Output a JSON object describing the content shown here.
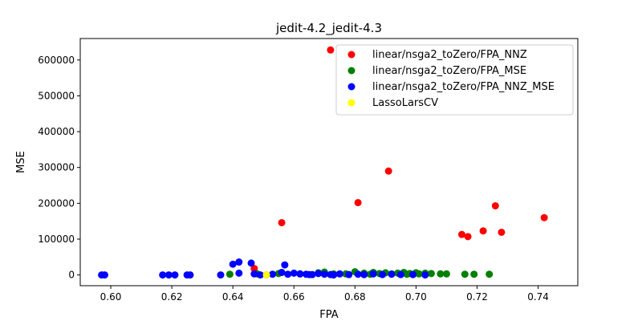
{
  "chart_data": {
    "type": "scatter",
    "title": "jedit-4.2_jedit-4.3",
    "xlabel": "FPA",
    "ylabel": "MSE",
    "xlim": [
      0.59,
      0.753
    ],
    "ylim": [
      -30000,
      660000
    ],
    "xticks": [
      {
        "value": 0.6,
        "label": "0.60"
      },
      {
        "value": 0.62,
        "label": "0.62"
      },
      {
        "value": 0.64,
        "label": "0.64"
      },
      {
        "value": 0.66,
        "label": "0.66"
      },
      {
        "value": 0.68,
        "label": "0.68"
      },
      {
        "value": 0.7,
        "label": "0.70"
      },
      {
        "value": 0.72,
        "label": "0.72"
      },
      {
        "value": 0.74,
        "label": "0.74"
      }
    ],
    "yticks": [
      {
        "value": 0,
        "label": "0"
      },
      {
        "value": 100000,
        "label": "100000"
      },
      {
        "value": 200000,
        "label": "200000"
      },
      {
        "value": 300000,
        "label": "300000"
      },
      {
        "value": 400000,
        "label": "400000"
      },
      {
        "value": 500000,
        "label": "500000"
      },
      {
        "value": 600000,
        "label": "600000"
      }
    ],
    "grid": false,
    "legend_position": "top-right",
    "series": [
      {
        "name": "linear/nsga2_toZero/FPA_NNZ",
        "color": "#ff0000",
        "points": [
          [
            0.672,
            628000
          ],
          [
            0.691,
            290000
          ],
          [
            0.681,
            202000
          ],
          [
            0.656,
            146000
          ],
          [
            0.726,
            193000
          ],
          [
            0.742,
            160000
          ],
          [
            0.722,
            123000
          ],
          [
            0.728,
            119000
          ],
          [
            0.715,
            113000
          ],
          [
            0.717,
            107000
          ],
          [
            0.647,
            18000
          ]
        ]
      },
      {
        "name": "linear/nsga2_toZero/FPA_MSE",
        "color": "#008000",
        "points": [
          [
            0.639,
            2000
          ],
          [
            0.648,
            3000
          ],
          [
            0.655,
            4000
          ],
          [
            0.662,
            3000
          ],
          [
            0.668,
            6000
          ],
          [
            0.67,
            8000
          ],
          [
            0.673,
            3000
          ],
          [
            0.68,
            9000
          ],
          [
            0.683,
            5000
          ],
          [
            0.686,
            7000
          ],
          [
            0.688,
            4000
          ],
          [
            0.69,
            6000
          ],
          [
            0.692,
            3000
          ],
          [
            0.694,
            5000
          ],
          [
            0.696,
            7000
          ],
          [
            0.698,
            4000
          ],
          [
            0.7,
            6000
          ],
          [
            0.701,
            3000
          ],
          [
            0.703,
            5000
          ],
          [
            0.705,
            4000
          ],
          [
            0.708,
            3000
          ],
          [
            0.71,
            3000
          ],
          [
            0.716,
            2000
          ],
          [
            0.719,
            2000
          ],
          [
            0.724,
            2000
          ],
          [
            0.677,
            3000
          ],
          [
            0.685,
            2000
          ],
          [
            0.697,
            2000
          ]
        ]
      },
      {
        "name": "linear/nsga2_toZero/FPA_NNZ_MSE",
        "color": "#0000ff",
        "points": [
          [
            0.597,
            0
          ],
          [
            0.598,
            0
          ],
          [
            0.617,
            0
          ],
          [
            0.619,
            0
          ],
          [
            0.621,
            0
          ],
          [
            0.625,
            0
          ],
          [
            0.626,
            0
          ],
          [
            0.636,
            0
          ],
          [
            0.64,
            30000
          ],
          [
            0.642,
            36000
          ],
          [
            0.642,
            5000
          ],
          [
            0.646,
            33000
          ],
          [
            0.647,
            3000
          ],
          [
            0.649,
            0
          ],
          [
            0.651,
            0
          ],
          [
            0.653,
            2000
          ],
          [
            0.656,
            7000
          ],
          [
            0.657,
            28000
          ],
          [
            0.658,
            2000
          ],
          [
            0.66,
            5000
          ],
          [
            0.662,
            3000
          ],
          [
            0.664,
            2000
          ],
          [
            0.666,
            1000
          ],
          [
            0.668,
            4000
          ],
          [
            0.67,
            2000
          ],
          [
            0.672,
            1000
          ],
          [
            0.675,
            3000
          ],
          [
            0.678,
            1000
          ],
          [
            0.681,
            2000
          ],
          [
            0.683,
            1000
          ],
          [
            0.686,
            3000
          ],
          [
            0.689,
            1000
          ],
          [
            0.692,
            2000
          ],
          [
            0.695,
            1000
          ],
          [
            0.699,
            1000
          ],
          [
            0.703,
            0
          ],
          [
            0.665,
            1000
          ],
          [
            0.673,
            0
          ]
        ]
      },
      {
        "name": "LassoLarsCV",
        "color": "#ffff00",
        "points": [
          [
            0.651,
            0
          ]
        ]
      }
    ]
  }
}
